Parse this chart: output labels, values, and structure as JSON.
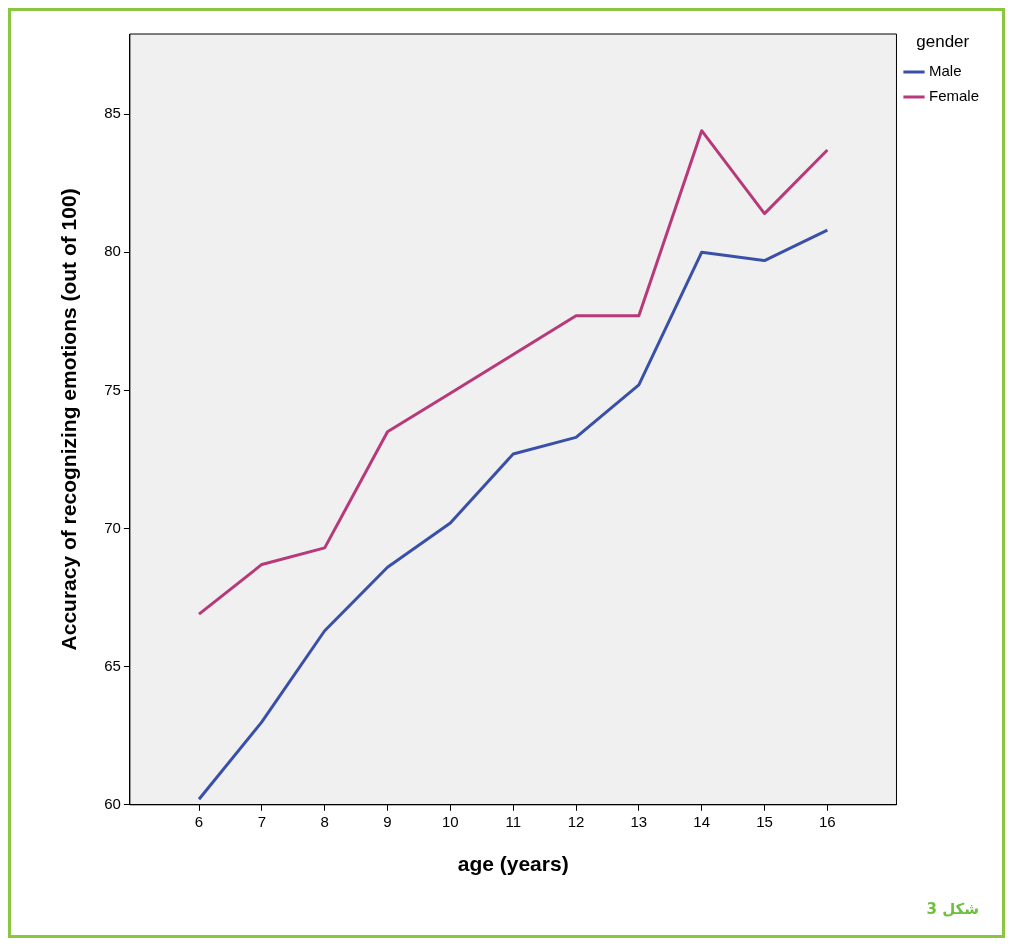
{
  "chart_data": {
    "type": "line",
    "xlabel": "age (years)",
    "ylabel": "Accuracy of recognizing emotions (out of 100)",
    "legend_title": "gender",
    "legend": "right",
    "grid": false,
    "marker": "none",
    "line_style": "solid",
    "x": [
      6,
      7,
      8,
      9,
      10,
      11,
      12,
      13,
      14,
      15,
      16
    ],
    "xlim": [
      4.9,
      17.1
    ],
    "xticks": [
      6,
      7,
      8,
      9,
      10,
      11,
      12,
      13,
      14,
      15,
      16
    ],
    "ylim": [
      60,
      87.9
    ],
    "yticks": [
      60,
      65,
      70,
      75,
      80,
      85
    ],
    "series": [
      {
        "name": "Male",
        "color": "#3a50a8",
        "values": [
          60.2,
          63.0,
          66.3,
          68.6,
          70.2,
          72.7,
          73.3,
          75.2,
          80.0,
          79.7,
          80.8
        ]
      },
      {
        "name": "Female",
        "color": "#b8397a",
        "values": [
          66.9,
          68.7,
          69.3,
          73.5,
          74.9,
          76.3,
          77.7,
          77.7,
          84.4,
          81.4,
          83.7
        ]
      }
    ],
    "annotations": [
      "شكل 3"
    ]
  }
}
